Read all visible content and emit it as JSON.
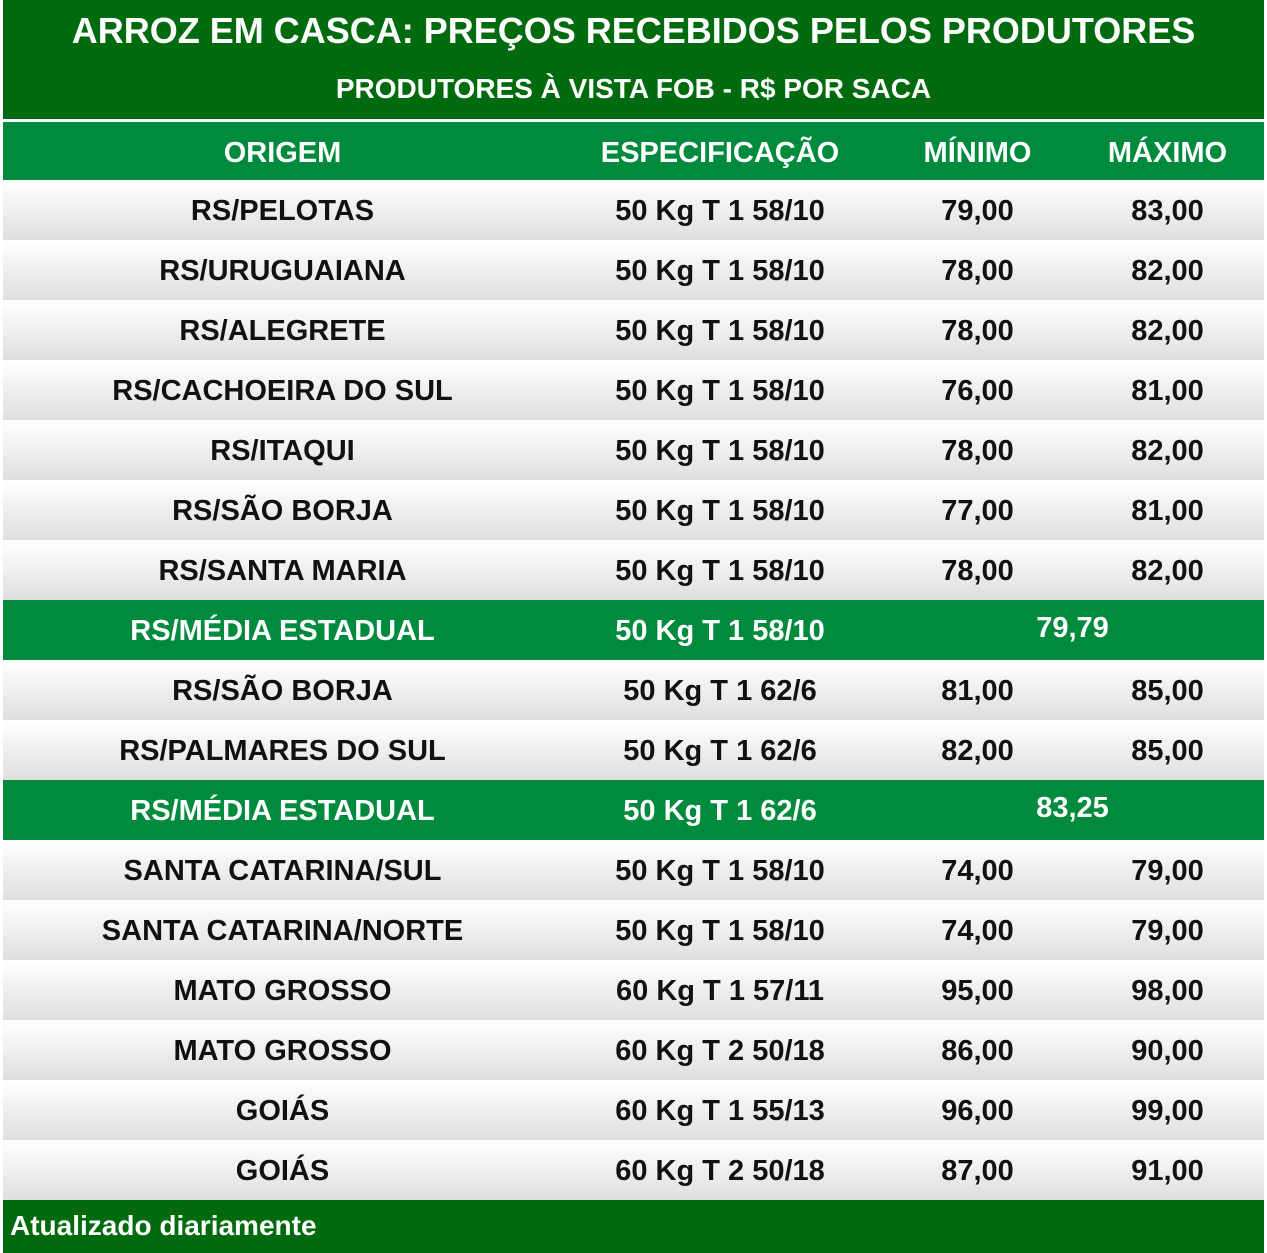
{
  "title": "ARROZ EM CASCA: PREÇOS RECEBIDOS PELOS PRODUTORES",
  "subtitle": "PRODUTORES À VISTA FOB - R$ POR SACA",
  "table": {
    "header": [
      "ORIGEM",
      "ESPECIFICAÇÃO",
      "MÍNIMO",
      "MÁXIMO"
    ],
    "rows": [
      [
        "RS/PELOTAS",
        "50 Kg T 1 58/10",
        "79,00",
        "83,00"
      ],
      [
        "RS/URUGUAIANA",
        "50 Kg T 1 58/10",
        "78,00",
        "82,00"
      ],
      [
        "RS/ALEGRETE",
        "50 Kg T 1 58/10",
        "78,00",
        "82,00"
      ],
      [
        "RS/CACHOEIRA DO SUL",
        "50 Kg T 1 58/10",
        "76,00",
        "81,00"
      ],
      [
        "RS/ITAQUI",
        "50 Kg T 1 58/10",
        "78,00",
        "82,00"
      ],
      [
        "RS/SÃO BORJA",
        "50 Kg T 1 58/10",
        "77,00",
        "81,00"
      ],
      [
        "RS/SANTA MARIA",
        "50 Kg T 1 58/10",
        "78,00",
        "82,00"
      ],
      [
        "RS/MÉDIA ESTADUAL",
        "50 Kg T 1 58/10",
        "79,79"
      ],
      [
        "RS/SÃO BORJA",
        "50 Kg T 1 62/6",
        "81,00",
        "85,00"
      ],
      [
        "RS/PALMARES DO SUL",
        "50 Kg T 1 62/6",
        "82,00",
        "85,00"
      ],
      [
        "RS/MÉDIA ESTADUAL",
        "50 Kg T 1 62/6",
        "83,25"
      ],
      [
        "SANTA CATARINA/SUL",
        "50 Kg T 1 58/10",
        "74,00",
        "79,00"
      ],
      [
        "SANTA CATARINA/NORTE",
        "50 Kg T 1 58/10",
        "74,00",
        "79,00"
      ],
      [
        "MATO GROSSO",
        "60 Kg T 1 57/11",
        "95,00",
        "98,00"
      ],
      [
        "MATO GROSSO",
        "60 Kg T 2 50/18",
        "86,00",
        "90,00"
      ],
      [
        "GOIÁS",
        "60 Kg T 1 55/13",
        "96,00",
        "99,00"
      ],
      [
        "GOIÁS",
        "60 Kg T 2 50/18",
        "87,00",
        "91,00"
      ]
    ]
  },
  "footer": "Atualizado diariamente"
}
